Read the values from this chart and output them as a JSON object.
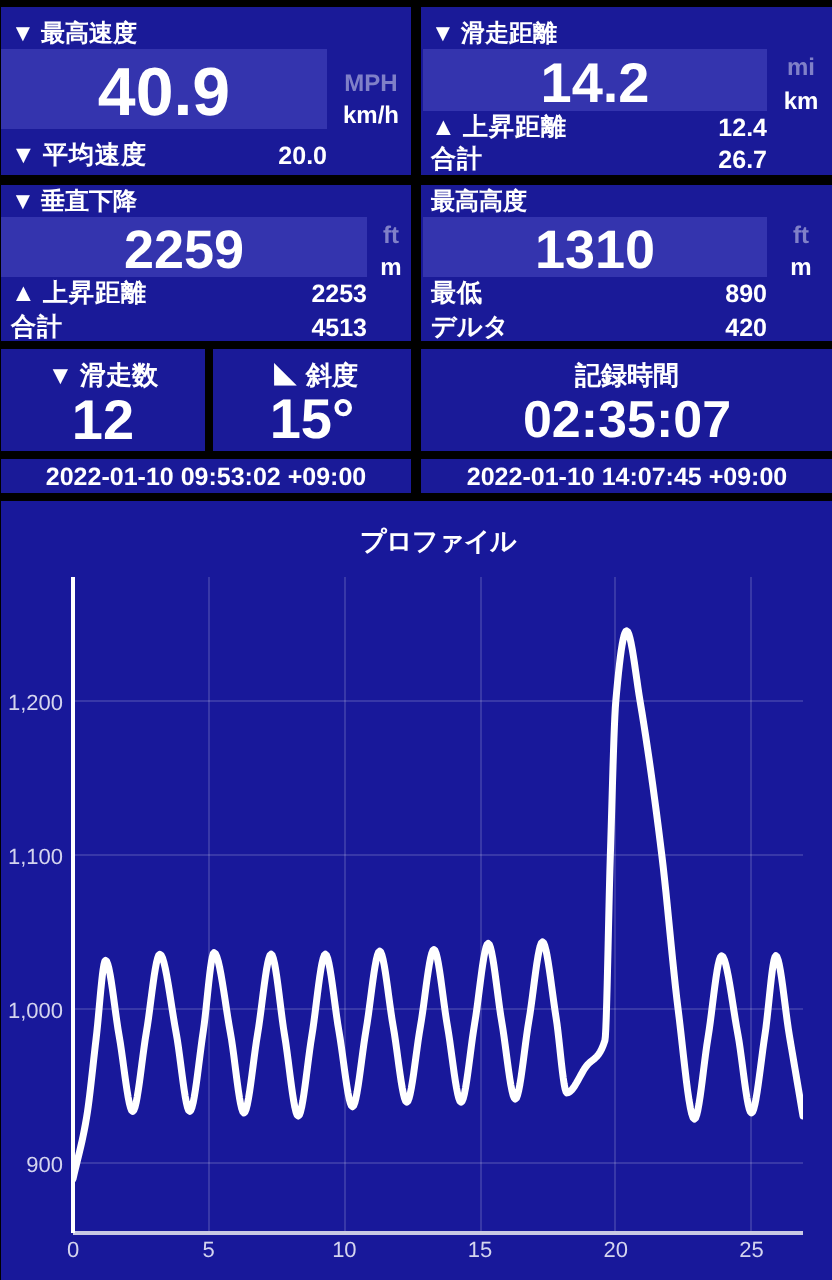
{
  "chart_data": [
    {
      "type": "other",
      "title": "▼ 最高速度",
      "annotations": [
        "40.9",
        "MPH",
        "km/h",
        "▼ 平均速度",
        "20.0"
      ]
    },
    {
      "type": "other",
      "title": "▼ 滑走距離",
      "annotations": [
        "14.2",
        "mi",
        "km",
        "▲ 上昇距離",
        "12.4",
        "合計",
        "26.7"
      ]
    },
    {
      "type": "other",
      "title": "▼ 垂直下降",
      "annotations": [
        "2259",
        "ft",
        "m",
        "▲ 上昇距離",
        "2253",
        "合計",
        "4513"
      ]
    },
    {
      "type": "other",
      "title": "最高高度",
      "annotations": [
        "1310",
        "ft",
        "m",
        "最低",
        "890",
        "デルタ",
        "420"
      ]
    },
    {
      "type": "other",
      "title": "▼ 滑走数",
      "annotations": [
        "12"
      ]
    },
    {
      "type": "other",
      "title": "◣ 斜度",
      "annotations": [
        "15°"
      ]
    },
    {
      "type": "other",
      "title": "記録時間",
      "annotations": [
        "02:35:07"
      ]
    },
    {
      "type": "other",
      "annotations": [
        "2022-01-10 09:53:02 +09:00"
      ]
    },
    {
      "type": "other",
      "annotations": [
        "2022-01-10 14:07:45 +09:00"
      ]
    },
    {
      "type": "line",
      "title": "プロファイル",
      "x": [
        0,
        0.5,
        0.85,
        1.2,
        1.7,
        2.2,
        2.7,
        3.2,
        3.8,
        4.3,
        4.8,
        5.2,
        5.8,
        6.3,
        6.8,
        7.3,
        7.8,
        8.3,
        8.8,
        9.3,
        9.8,
        10.3,
        10.8,
        11.3,
        11.8,
        12.3,
        12.8,
        13.3,
        13.8,
        14.3,
        14.8,
        15.3,
        15.8,
        16.3,
        16.8,
        17.3,
        17.8,
        18.2,
        18.9,
        19.6,
        19.8,
        20.0,
        20.4,
        20.9,
        21.7,
        22.3,
        22.9,
        23.4,
        23.9,
        24.5,
        25.0,
        25.5,
        25.9,
        26.4,
        26.9
      ],
      "values": [
        890,
        930,
        981,
        1032,
        983,
        934,
        985,
        1036,
        985,
        934,
        986,
        1037,
        985,
        933,
        984,
        1036,
        983,
        931,
        983,
        1036,
        986,
        937,
        987,
        1038,
        989,
        940,
        989,
        1039,
        989,
        940,
        991,
        1043,
        992,
        942,
        993,
        1044,
        995,
        946,
        963,
        980,
        1100,
        1200,
        1246,
        1200,
        1100,
        1000,
        929,
        982,
        1035,
        984,
        933,
        984,
        1035,
        983,
        931
      ],
      "color": "#ffffff",
      "xlim": [
        0,
        26.9
      ],
      "ylim": [
        855,
        1281
      ],
      "xticks": [
        0,
        5,
        10,
        15,
        20,
        25
      ],
      "yticks": [
        900,
        {
          "value": 1000,
          "label": "1,000"
        },
        {
          "value": 1100,
          "label": "1,100"
        },
        {
          "value": 1200,
          "label": "1,200"
        }
      ],
      "grid": true,
      "line_style": "solid"
    }
  ]
}
